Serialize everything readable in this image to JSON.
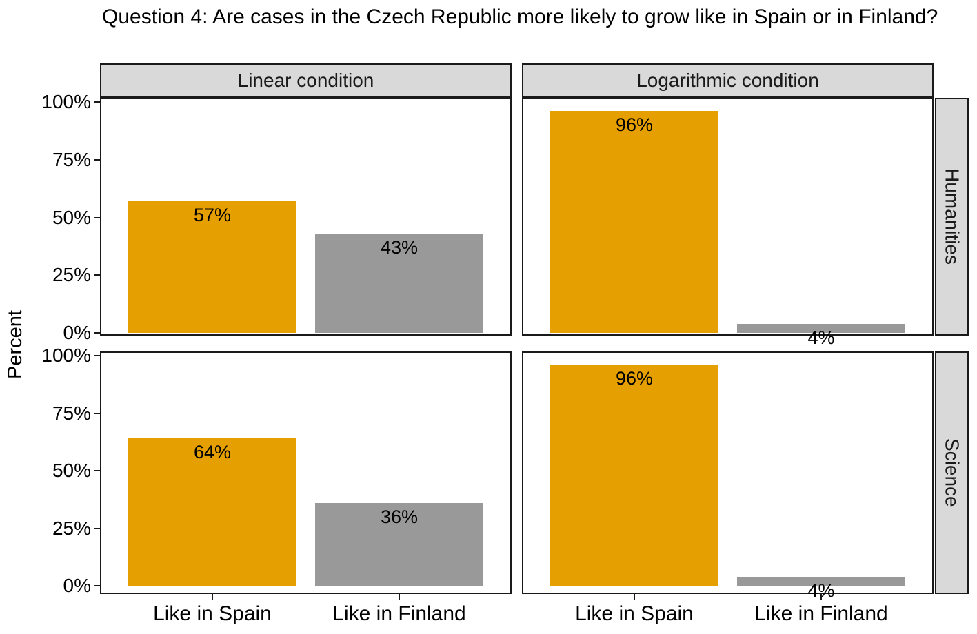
{
  "title": "Question 4: Are cases in the Czech Republic more likely to grow like in Spain or in Finland?",
  "chart_data": {
    "type": "bar",
    "facets": {
      "columns": [
        "Linear condition",
        "Logarithmic condition"
      ],
      "rows": [
        "Humanities",
        "Science"
      ]
    },
    "categories": [
      "Like in Spain",
      "Like in Finland"
    ],
    "ylabel": "Percent",
    "y_ticks": [
      "100%",
      "75%",
      "50%",
      "25%",
      "0%"
    ],
    "y_tick_values": [
      100,
      75,
      50,
      25,
      0
    ],
    "ylim": [
      0,
      100
    ],
    "grid": false,
    "legend": "none",
    "series_colors": {
      "Like in Spain": "#E69F00",
      "Like in Finland": "#999999"
    },
    "panels": [
      {
        "row": "Humanities",
        "col": "Linear condition",
        "values": [
          57,
          43
        ],
        "labels": [
          "57%",
          "43%"
        ]
      },
      {
        "row": "Humanities",
        "col": "Logarithmic condition",
        "values": [
          96,
          4
        ],
        "labels": [
          "96%",
          "4%"
        ]
      },
      {
        "row": "Science",
        "col": "Linear condition",
        "values": [
          64,
          36
        ],
        "labels": [
          "64%",
          "36%"
        ]
      },
      {
        "row": "Science",
        "col": "Logarithmic condition",
        "values": [
          96,
          4
        ],
        "labels": [
          "96%",
          "4%"
        ]
      }
    ]
  },
  "colors": {
    "strip_bg": "#D9D9D9",
    "panel_border": "#1A1A1A",
    "text": "#000000",
    "background": "#FFFFFF"
  }
}
